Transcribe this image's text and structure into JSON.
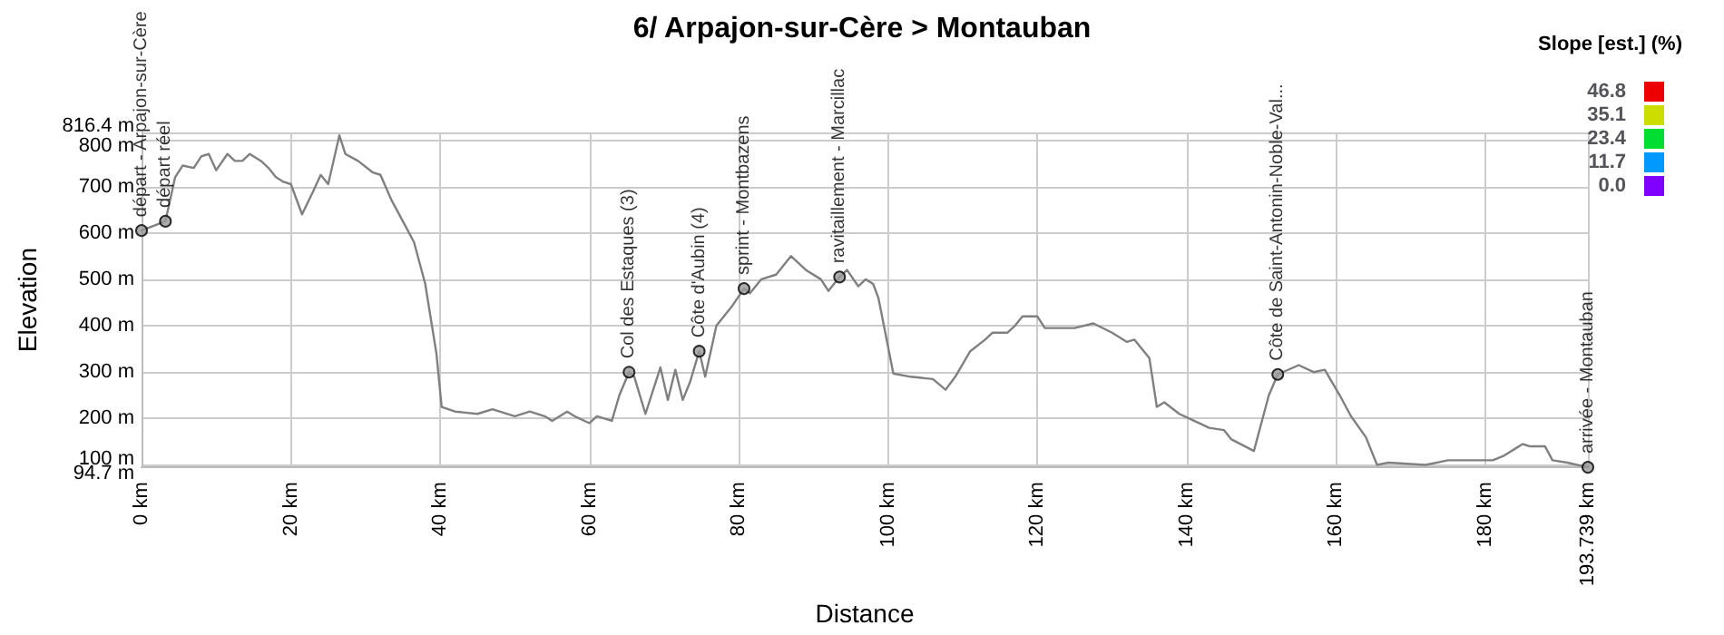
{
  "chart_data": {
    "type": "line",
    "title": "6/ Arpajon-sur-Cère > Montauban",
    "xlabel": "Distance",
    "ylabel": "Elevation",
    "clabel": "Slope [est.] (%)",
    "x": [
      0,
      3.2,
      4.5,
      5.5,
      7,
      8,
      9,
      10,
      11.5,
      12.5,
      13.5,
      14.5,
      16,
      17,
      18,
      19,
      20,
      21.5,
      23,
      24,
      25,
      26.5,
      27.3,
      29,
      31,
      32,
      33.5,
      35,
      36.5,
      38,
      39.5,
      40.2,
      42,
      45,
      47,
      50,
      52,
      54,
      55,
      57,
      58,
      60,
      61,
      63,
      64,
      65.3,
      66,
      67.5,
      69.5,
      70.5,
      71.5,
      72.5,
      73.5,
      74.7,
      75.5,
      77,
      79,
      80.7,
      81.5,
      83,
      85,
      87,
      89,
      91,
      92,
      93.5,
      94.5,
      96,
      97,
      98,
      98.7,
      100.7,
      103,
      106,
      107.7,
      109,
      111,
      113,
      114,
      116,
      117,
      118,
      120,
      121,
      125,
      127.5,
      130,
      132,
      133,
      135,
      136,
      137,
      139,
      141,
      143,
      145,
      146,
      149,
      150,
      151,
      152.2,
      155,
      157,
      158.5,
      160.5,
      162,
      164,
      165.5,
      167,
      172,
      175,
      178,
      181,
      182.5,
      184,
      185,
      186,
      188,
      189,
      191,
      193.739
    ],
    "series": [
      {
        "color": "#808080",
        "values": [
          605,
          625,
          720,
          745,
          740,
          765,
          770,
          735,
          770,
          755,
          755,
          770,
          755,
          740,
          720,
          710,
          705,
          640,
          690,
          725,
          705,
          810,
          770,
          755,
          730,
          725,
          670,
          625,
          580,
          490,
          340,
          225,
          215,
          210,
          220,
          205,
          215,
          205,
          195,
          215,
          205,
          190,
          205,
          195,
          250,
          300,
          290,
          210,
          310,
          240,
          305,
          240,
          280,
          345,
          290,
          400,
          440,
          480,
          470,
          500,
          510,
          550,
          520,
          500,
          475,
          505,
          520,
          485,
          500,
          490,
          460,
          297,
          290,
          285,
          262,
          290,
          345,
          370,
          385,
          385,
          400,
          420,
          420,
          395,
          395,
          405,
          385,
          365,
          370,
          330,
          225,
          235,
          210,
          195,
          180,
          175,
          155,
          130,
          190,
          250,
          295,
          315,
          300,
          305,
          250,
          205,
          160,
          100,
          105,
          100,
          110,
          110,
          110,
          120,
          135,
          145,
          140,
          140,
          110,
          105,
          95
        ]
      }
    ],
    "xlim": [
      0,
      193.739
    ],
    "xticks": [
      {
        "value": 0,
        "label": "0 km"
      },
      {
        "value": 20,
        "label": "20 km"
      },
      {
        "value": 40,
        "label": "40 km"
      },
      {
        "value": 60,
        "label": "60 km"
      },
      {
        "value": 80,
        "label": "80 km"
      },
      {
        "value": 100,
        "label": "100 km"
      },
      {
        "value": 120,
        "label": "120 km"
      },
      {
        "value": 140,
        "label": "140 km"
      },
      {
        "value": 160,
        "label": "160 km"
      },
      {
        "value": 180,
        "label": "180 km"
      },
      {
        "value": 193.739,
        "label": "193.739 km"
      }
    ],
    "ylim": [
      94.7,
      816.4
    ],
    "yticks": [
      {
        "value": 94.7,
        "label": "94.7 m"
      },
      {
        "value": 100,
        "label": "100 m"
      },
      {
        "value": 200,
        "label": "200 m"
      },
      {
        "value": 300,
        "label": "300 m"
      },
      {
        "value": 400,
        "label": "400 m"
      },
      {
        "value": 500,
        "label": "500 m"
      },
      {
        "value": 600,
        "label": "600 m"
      },
      {
        "value": 700,
        "label": "700 m"
      },
      {
        "value": 800,
        "label": "800 m"
      },
      {
        "value": 816.4,
        "label": "816.4 m"
      }
    ],
    "cticks": [
      {
        "value": 0,
        "label": "0.0"
      },
      11.7,
      23.4,
      35.1,
      46.8
    ],
    "grid": true,
    "line_style": "solid",
    "annotations": [
      {
        "text": "départ - Arpajon-sur-Cère",
        "x": 0,
        "y": 605
      },
      {
        "text": "départ réel",
        "x": 3.2,
        "y": 625
      },
      {
        "text": "Col des Estaques (3)",
        "x": 65.3,
        "y": 300
      },
      {
        "text": "Côte d'Aubin (4)",
        "x": 74.7,
        "y": 345
      },
      {
        "text": "sprint - Montbazens",
        "x": 80.7,
        "y": 480
      },
      {
        "text": "ravitaillement - Marcillac",
        "x": 93.5,
        "y": 505
      },
      {
        "text": "Côte de Saint-Antonin-Noble-Val...",
        "x": 152.2,
        "y": 295
      },
      {
        "text": "arrivée - Montauban",
        "x": 193.739,
        "y": 95
      }
    ]
  }
}
